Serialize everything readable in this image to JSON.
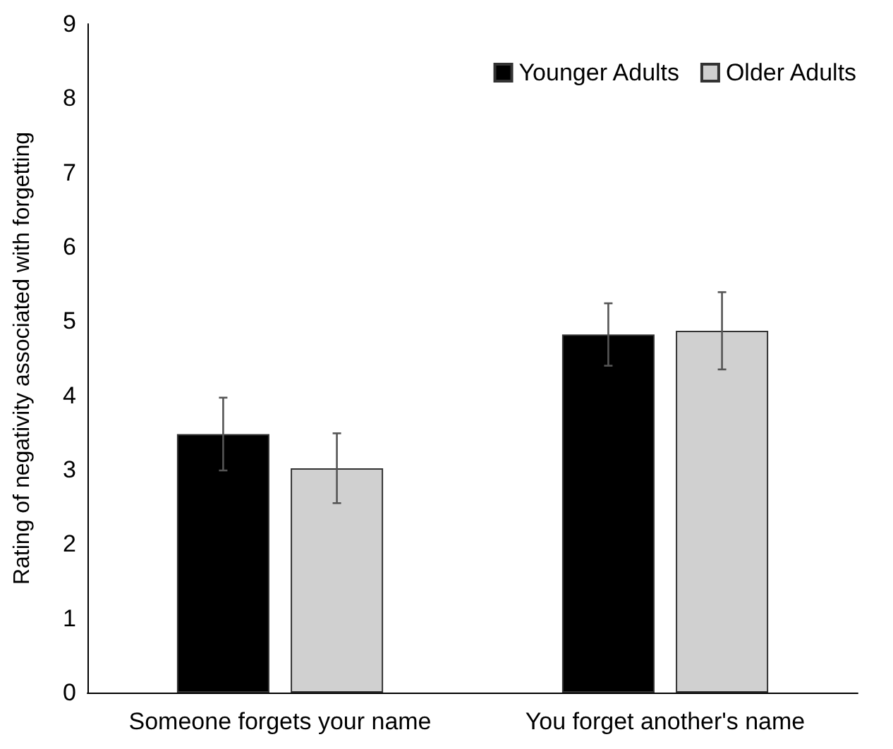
{
  "chart_data": {
    "type": "bar",
    "ylabel": "Rating of negativity associated with forgetting",
    "categories": [
      "Someone forgets your name",
      "You forget another's name"
    ],
    "series": [
      {
        "name": "Younger Adults",
        "color": "#000000",
        "values": [
          3.48,
          4.82
        ],
        "errors": [
          0.49,
          0.42
        ]
      },
      {
        "name": "Older Adults",
        "color": "#d0d0d0",
        "values": [
          3.02,
          4.87
        ],
        "errors": [
          0.47,
          0.52
        ]
      }
    ],
    "ylim": [
      0,
      9
    ],
    "yticks": [
      0,
      1,
      2,
      3,
      4,
      5,
      6,
      7,
      8,
      9
    ],
    "grid": false,
    "legend": "top right"
  }
}
